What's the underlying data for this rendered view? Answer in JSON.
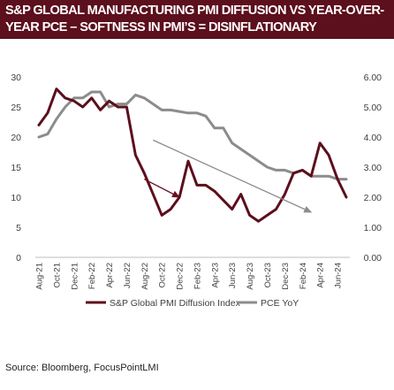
{
  "title": "S&P GLOBAL MANUFACTURING PMI DIFFUSION VS YEAR-OVER-YEAR PCE – SOFTNESS IN PMI’S = DISINFLATIONARY",
  "source": "Source: Bloomberg, FocusPointLMI",
  "colors": {
    "title_bg": "#5c0f1c",
    "pmi": "#5c0f1c",
    "pce": "#8c8c8c",
    "arrow": "#8c8c8c",
    "arrow_red": "#6b0f1f"
  },
  "chart_data": {
    "type": "line",
    "x": [
      "Aug-21",
      "Sep-21",
      "Oct-21",
      "Nov-21",
      "Dec-21",
      "Jan-22",
      "Feb-22",
      "Mar-22",
      "Apr-22",
      "May-22",
      "Jun-22",
      "Jul-22",
      "Aug-22",
      "Sep-22",
      "Oct-22",
      "Nov-22",
      "Dec-22",
      "Jan-23",
      "Feb-23",
      "Mar-23",
      "Apr-23",
      "May-23",
      "Jun-23",
      "Jul-23",
      "Aug-23",
      "Sep-23",
      "Oct-23",
      "Nov-23",
      "Dec-23",
      "Jan-24",
      "Feb-24",
      "Mar-24",
      "Apr-24",
      "May-24",
      "Jun-24",
      "Jul-24"
    ],
    "x_tick_labels": [
      "Aug-21",
      "Oct-21",
      "Dec-21",
      "Feb-22",
      "Apr-22",
      "Jun-22",
      "Aug-22",
      "Oct-22",
      "Dec-22",
      "Feb-23",
      "Apr-23",
      "Jun-23",
      "Aug-23",
      "Oct-23",
      "Dec-23",
      "Feb-24",
      "Apr-24",
      "Jun-24"
    ],
    "series": [
      {
        "name": "S&P Global PMI Diffusion Index",
        "axis": "left",
        "values": [
          22,
          24,
          28,
          26.5,
          26,
          25,
          26.5,
          24.5,
          26,
          25,
          25,
          17,
          14,
          10.5,
          7,
          8,
          10,
          16,
          12,
          12,
          11,
          9.5,
          8,
          10.5,
          7,
          6,
          7,
          8,
          10.5,
          14,
          14.5,
          13.5,
          19,
          17,
          13,
          10
        ]
      },
      {
        "name": "PCE YoY",
        "axis": "right",
        "values": [
          4.0,
          4.1,
          4.6,
          5.0,
          5.3,
          5.3,
          5.5,
          5.5,
          5.0,
          5.1,
          5.1,
          5.4,
          5.3,
          5.1,
          4.9,
          4.9,
          4.85,
          4.8,
          4.8,
          4.7,
          4.3,
          4.3,
          3.8,
          3.6,
          3.4,
          3.2,
          3.0,
          2.9,
          2.9,
          2.8,
          2.9,
          2.7,
          2.7,
          2.7,
          2.6,
          2.6
        ]
      }
    ],
    "y_left": {
      "min": 0,
      "max": 30,
      "ticks": [
        "0",
        "5",
        "10",
        "15",
        "20",
        "25",
        "30"
      ]
    },
    "y_right": {
      "min": 0,
      "max": 6,
      "ticks": [
        "0.00",
        "1.00",
        "2.00",
        "3.00",
        "4.00",
        "5.00",
        "6.00"
      ]
    },
    "arrows": [
      {
        "color": "red",
        "from": {
          "x": "Aug-22",
          "y": 13
        },
        "to": {
          "x": "Dec-22",
          "y": 10
        }
      },
      {
        "color": "gray",
        "from": {
          "x": "Sep-22",
          "y": 19.5
        },
        "to": {
          "x": "Mar-24",
          "y": 7.5
        }
      }
    ],
    "grid": false,
    "legend_position": "bottom"
  }
}
